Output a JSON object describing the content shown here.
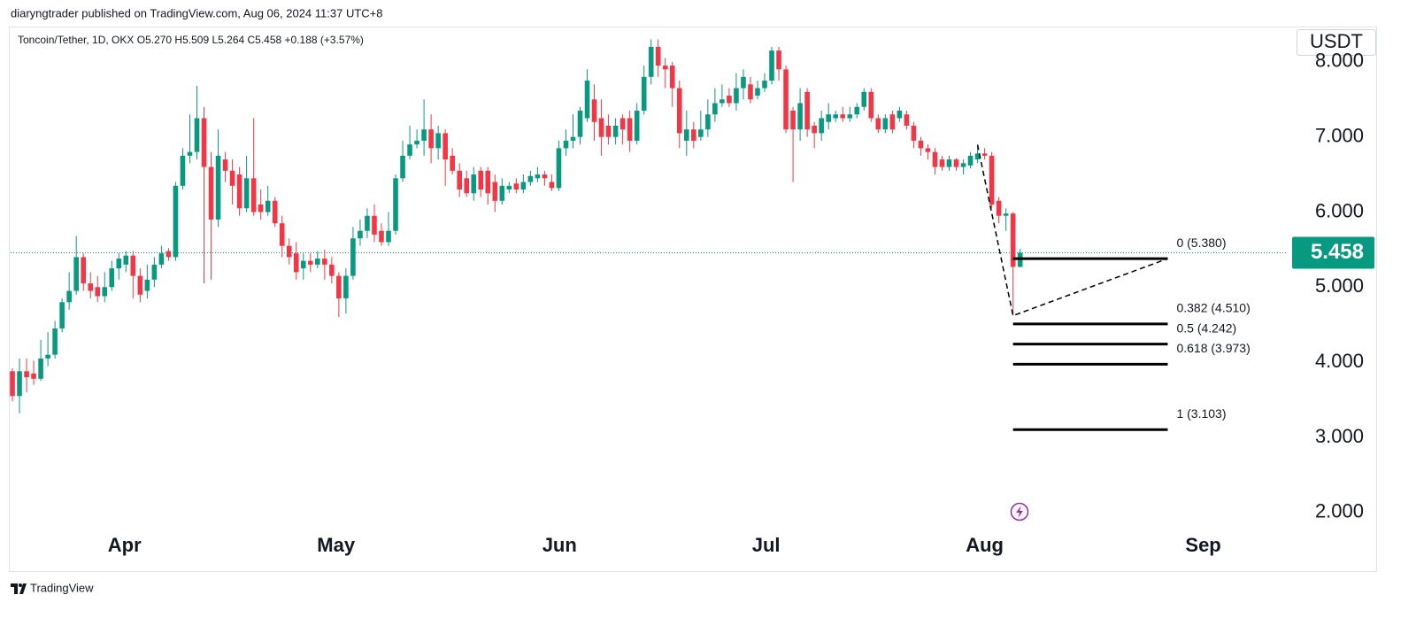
{
  "header": "diaryngtrader published on TradingView.com, Aug 06, 2024 11:37 UTC+8",
  "footer": "TradingView",
  "chart_data": {
    "type": "candlestick",
    "legend": "Toncoin/Tether, 1D, OKX  O5.270  H5.509  L5.264  C5.458  +0.188 (+3.57%)",
    "currency": "USDT",
    "up_color": "#089981",
    "down_color": "#f23645",
    "open": [
      3.88,
      3.55,
      3.88,
      3.85,
      3.78,
      4.05,
      4.1,
      4.45,
      4.8,
      4.95,
      5.4,
      5.05,
      5.0,
      4.88,
      5.0,
      5.25,
      5.3,
      5.42,
      5.15,
      4.95,
      5.1,
      5.3,
      5.48,
      5.4,
      6.35,
      6.75,
      6.8,
      7.25,
      6.6,
      5.9,
      6.7,
      6.55,
      6.5,
      6.05,
      6.45,
      6.1,
      6.0,
      6.15,
      5.85,
      5.55,
      5.45,
      5.25,
      5.35,
      5.3,
      5.38,
      5.3,
      5.15,
      4.85,
      5.15,
      5.65,
      5.75,
      5.95,
      5.75,
      5.6,
      5.75,
      6.45,
      6.75,
      6.9,
      6.95,
      7.1,
      6.85,
      7.05,
      6.75,
      6.55,
      6.45,
      6.25,
      6.55,
      6.55,
      6.4,
      6.15,
      6.3,
      6.38,
      6.3,
      6.4,
      6.45,
      6.5,
      6.4,
      6.32,
      6.85,
      6.95,
      7.0,
      7.25,
      7.5,
      7.25,
      7.15,
      7.0,
      7.25,
      7.25,
      6.95,
      7.35,
      7.8,
      8.2,
      7.95,
      7.95,
      7.65,
      6.95,
      7.1,
      7.0,
      7.1,
      7.3,
      7.45,
      7.55,
      7.45,
      7.65,
      7.7,
      7.55,
      7.65,
      7.75,
      8.15,
      7.9,
      7.35,
      7.1,
      7.6,
      7.15,
      7.05,
      7.2,
      7.25,
      7.3,
      7.25,
      7.3,
      7.4,
      7.6,
      7.25,
      7.1,
      7.3,
      7.25,
      7.3,
      7.15,
      6.95,
      6.85,
      6.8,
      6.7,
      6.6,
      6.7,
      6.6,
      6.62,
      6.7,
      6.78,
      6.75,
      6.15,
      5.95,
      5.98,
      5.27
    ],
    "high": [
      3.92,
      4.05,
      4.05,
      4.02,
      4.3,
      4.4,
      4.55,
      4.85,
      5.2,
      5.68,
      5.45,
      5.2,
      5.15,
      5.2,
      5.35,
      5.45,
      5.48,
      5.48,
      5.25,
      5.3,
      5.4,
      5.55,
      5.52,
      6.4,
      6.85,
      7.3,
      7.68,
      7.4,
      6.8,
      7.1,
      6.8,
      6.7,
      6.6,
      6.75,
      7.25,
      6.3,
      6.35,
      6.2,
      5.95,
      5.65,
      5.6,
      5.45,
      5.45,
      5.48,
      5.5,
      5.4,
      5.2,
      5.25,
      5.8,
      5.9,
      6.05,
      6.1,
      5.85,
      6.0,
      6.5,
      6.95,
      7.15,
      7.1,
      7.5,
      7.3,
      7.15,
      7.1,
      6.85,
      6.65,
      6.55,
      6.6,
      6.6,
      6.6,
      6.5,
      6.45,
      6.4,
      6.45,
      6.5,
      6.55,
      6.6,
      6.55,
      6.5,
      6.95,
      7.1,
      7.3,
      7.4,
      7.9,
      7.7,
      7.5,
      7.3,
      7.25,
      7.3,
      7.35,
      7.45,
      7.95,
      8.3,
      8.3,
      8.05,
      8.0,
      7.75,
      7.35,
      7.2,
      7.35,
      7.5,
      7.65,
      7.7,
      7.65,
      7.85,
      7.9,
      7.8,
      7.75,
      7.85,
      8.2,
      8.2,
      7.95,
      7.4,
      7.65,
      7.65,
      7.2,
      7.35,
      7.45,
      7.35,
      7.4,
      7.4,
      7.45,
      7.65,
      7.65,
      7.3,
      7.3,
      7.35,
      7.4,
      7.35,
      7.2,
      7.0,
      6.9,
      6.85,
      6.75,
      6.75,
      6.72,
      6.7,
      6.8,
      6.88,
      6.85,
      6.8,
      6.2,
      6.05,
      6.0,
      5.509
    ],
    "low": [
      3.48,
      3.32,
      3.6,
      3.7,
      3.75,
      3.95,
      4.05,
      4.4,
      4.7,
      4.9,
      4.95,
      4.85,
      4.8,
      4.8,
      4.95,
      5.1,
      5.2,
      4.85,
      4.8,
      4.85,
      5.0,
      5.25,
      5.35,
      5.35,
      6.3,
      6.65,
      6.7,
      5.05,
      5.1,
      5.8,
      6.4,
      6.1,
      5.95,
      6.0,
      5.95,
      5.9,
      5.95,
      5.8,
      5.4,
      5.3,
      5.1,
      5.1,
      5.2,
      5.25,
      5.1,
      5.05,
      4.6,
      4.65,
      5.1,
      5.55,
      5.65,
      5.6,
      5.55,
      5.55,
      5.7,
      6.4,
      6.7,
      6.85,
      6.75,
      6.65,
      6.7,
      6.35,
      6.5,
      6.2,
      6.2,
      6.15,
      6.2,
      6.1,
      6.0,
      6.1,
      6.25,
      6.25,
      6.25,
      6.35,
      6.4,
      6.35,
      6.28,
      6.28,
      6.75,
      6.85,
      6.9,
      7.2,
      6.95,
      6.75,
      6.9,
      6.9,
      6.9,
      6.8,
      6.9,
      7.3,
      7.7,
      7.8,
      7.65,
      7.4,
      6.85,
      6.75,
      6.85,
      6.95,
      7.0,
      7.2,
      7.4,
      7.4,
      7.35,
      7.5,
      7.45,
      7.5,
      7.6,
      7.7,
      7.75,
      7.05,
      6.4,
      6.95,
      7.0,
      6.85,
      6.95,
      7.1,
      7.2,
      7.2,
      7.2,
      7.25,
      7.35,
      7.2,
      7.05,
      7.05,
      7.05,
      7.2,
      7.1,
      6.85,
      6.75,
      6.7,
      6.5,
      6.55,
      6.55,
      6.55,
      6.5,
      6.58,
      6.65,
      6.7,
      6.05,
      5.85,
      5.75,
      4.62,
      5.264
    ],
    "close": [
      3.55,
      3.88,
      3.8,
      3.78,
      4.05,
      4.1,
      4.45,
      4.8,
      4.95,
      5.4,
      5.05,
      4.95,
      4.88,
      5.0,
      5.25,
      5.38,
      5.42,
      5.15,
      4.9,
      5.1,
      5.3,
      5.45,
      5.4,
      6.35,
      6.75,
      6.8,
      7.25,
      6.6,
      5.9,
      6.75,
      6.55,
      6.35,
      6.05,
      6.45,
      6.0,
      6.0,
      6.15,
      5.85,
      5.55,
      5.4,
      5.2,
      5.35,
      5.3,
      5.38,
      5.3,
      5.15,
      4.85,
      5.15,
      5.65,
      5.75,
      5.95,
      5.7,
      5.6,
      5.75,
      6.45,
      6.75,
      6.9,
      6.95,
      7.1,
      6.85,
      7.05,
      6.7,
      6.55,
      6.3,
      6.25,
      6.5,
      6.3,
      6.25,
      6.15,
      6.35,
      6.35,
      6.3,
      6.4,
      6.48,
      6.5,
      6.45,
      6.32,
      6.85,
      6.95,
      7.0,
      7.35,
      7.75,
      7.2,
      7.0,
      7.0,
      7.15,
      7.1,
      6.95,
      7.35,
      7.8,
      8.2,
      7.95,
      7.9,
      7.65,
      7.05,
      7.1,
      6.95,
      7.1,
      7.3,
      7.45,
      7.5,
      7.45,
      7.65,
      7.8,
      7.5,
      7.65,
      7.75,
      8.15,
      7.9,
      7.1,
      7.1,
      7.45,
      7.1,
      7.05,
      7.25,
      7.3,
      7.3,
      7.25,
      7.3,
      7.4,
      7.6,
      7.25,
      7.1,
      7.25,
      7.1,
      7.35,
      7.15,
      6.95,
      6.85,
      6.8,
      6.6,
      6.6,
      6.7,
      6.6,
      6.65,
      6.75,
      6.78,
      6.75,
      6.1,
      5.95,
      5.98,
      5.27,
      5.458
    ],
    "last_price": 5.458,
    "xlim": [
      -0.25,
      179.7
    ],
    "xticks": [
      {
        "value": 15.8,
        "label": "Apr"
      },
      {
        "value": 45.6,
        "label": "May"
      },
      {
        "value": 77.1,
        "label": "Jun"
      },
      {
        "value": 106.2,
        "label": "Jul"
      },
      {
        "value": 137.0,
        "label": "Aug"
      },
      {
        "value": 167.8,
        "label": "Sep"
      }
    ],
    "ylim": [
      1.785,
      8.47
    ],
    "yticks": [
      {
        "value": 2,
        "label": "2.000"
      },
      {
        "value": 3,
        "label": "3.000"
      },
      {
        "value": 4,
        "label": "4.000"
      },
      {
        "value": 5,
        "label": "5.000"
      },
      {
        "value": 6,
        "label": "6.000"
      },
      {
        "value": 7,
        "label": "7.000"
      },
      {
        "value": 8,
        "label": "8.000"
      }
    ],
    "fib": {
      "color": "#000000",
      "x": [
        136.0,
        141.0,
        162.8
      ],
      "y": [
        6.897,
        4.62,
        5.38
      ],
      "levels": [
        {
          "value": 5.38,
          "label": "0 (5.380)"
        },
        {
          "value": 4.51,
          "label": "0.382 (4.510)"
        },
        {
          "value": 4.242,
          "label": "0.5 (4.242)"
        },
        {
          "value": 3.973,
          "label": "0.618 (3.973)"
        },
        {
          "value": 3.103,
          "label": "1 (3.103)"
        }
      ]
    }
  }
}
